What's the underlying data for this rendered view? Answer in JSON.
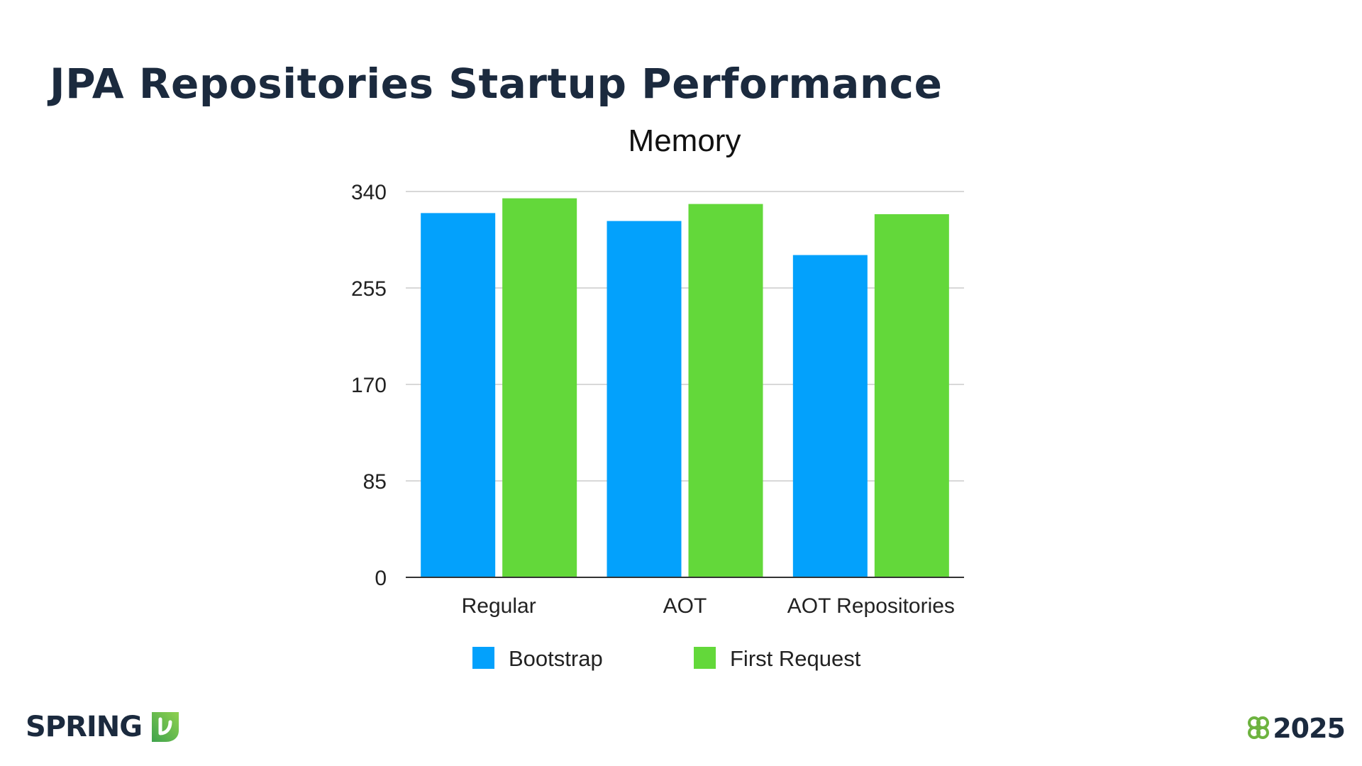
{
  "slide": {
    "title": "JPA Repositories Startup Performance"
  },
  "chart_data": {
    "type": "bar",
    "title": "Memory",
    "xlabel": "",
    "ylabel": "",
    "categories": [
      "Regular",
      "AOT",
      "AOT Repositories"
    ],
    "series": [
      {
        "name": "Bootstrap",
        "values": [
          321,
          314,
          284
        ],
        "color": "#03a1fc"
      },
      {
        "name": "First Request",
        "values": [
          334,
          329,
          320
        ],
        "color": "#63d83a"
      }
    ],
    "yticks": [
      "0",
      "85",
      "170",
      "255",
      "340"
    ],
    "ylim": [
      0,
      340
    ],
    "grid": true,
    "legend_position": "bottom"
  },
  "footer": {
    "brand": "SPRING",
    "year": "2025"
  },
  "colors": {
    "title": "#1b2a3e",
    "brand_green": "#6db33f"
  }
}
